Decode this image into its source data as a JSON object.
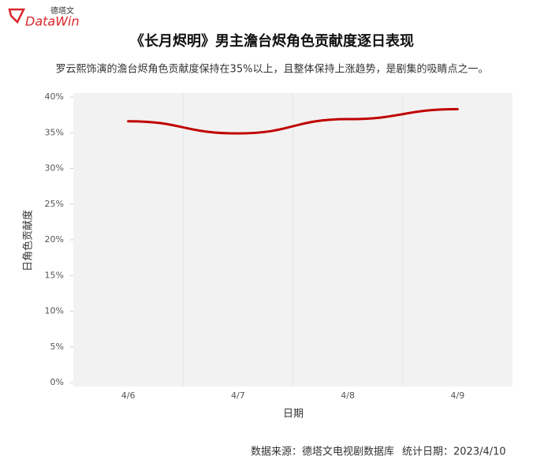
{
  "logo": {
    "cn": "德塔文",
    "en": "DataWin"
  },
  "chart_data": {
    "type": "line",
    "title": "《长月烬明》男主澹台烬角色贡献度逐日表现",
    "subtitle": "罗云熙饰演的澹台烬角色贡献度保持在35%以上，且整体保持上涨趋势，是剧集的吸睛点之一。",
    "x_label": "日期",
    "y_label": "日角色贡献度",
    "categories": [
      "4/6",
      "4/7",
      "4/8",
      "4/9"
    ],
    "series": [
      {
        "name": "日角色贡献度",
        "color": "#c00000",
        "values": [
          36.6,
          34.9,
          36.9,
          38.3
        ]
      }
    ],
    "ylim": [
      0,
      40
    ],
    "yticks": [
      {
        "value": 0,
        "label": "0%"
      },
      {
        "value": 5,
        "label": "5%"
      },
      {
        "value": 10,
        "label": "10%"
      },
      {
        "value": 15,
        "label": "15%"
      },
      {
        "value": 20,
        "label": "20%"
      },
      {
        "value": 25,
        "label": "25%"
      },
      {
        "value": 30,
        "label": "30%"
      },
      {
        "value": 35,
        "label": "35%"
      },
      {
        "value": 40,
        "label": "40%"
      }
    ]
  },
  "footer": {
    "source": "数据来源：德塔文电视剧数据库",
    "date": "统计日期：2023/4/10"
  }
}
